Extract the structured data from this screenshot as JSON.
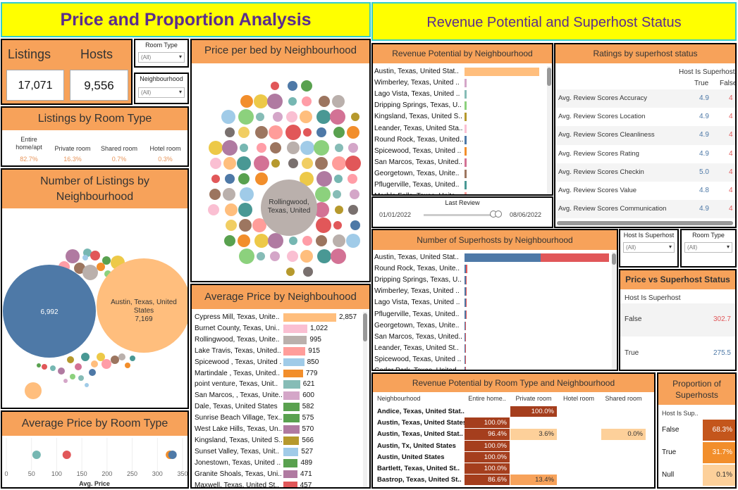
{
  "titles": {
    "left": "Price and Proportion Analysis",
    "right": "Revenue Potential and Superhost Status"
  },
  "kpi": {
    "listings_label": "Listings",
    "hosts_label": "Hosts",
    "listings": "17,071",
    "hosts": "9,556"
  },
  "filters": {
    "room_type": {
      "label": "Room Type",
      "value": "(All)"
    },
    "neighbourhood": {
      "label": "Neighbourhood",
      "value": "(All)"
    },
    "host_is_superhost": {
      "label": "Host Is Superhost",
      "value": "(All)"
    },
    "room_type_r": {
      "label": "Room Type",
      "value": "(All)"
    }
  },
  "room_type_section": {
    "title": "Listings by Room Type",
    "headers": [
      "Entire home/apt",
      "Private room",
      "Shared room",
      "Hotel room"
    ],
    "values": [
      "82.7%",
      "16.3%",
      "0.7%",
      "0.3%"
    ]
  },
  "listings_neigh": {
    "title": "Number of Listings by Neighbourhood",
    "big": [
      {
        "name": "",
        "label": "6,992",
        "value": 6992,
        "color": "#4e79a7"
      },
      {
        "name": "Austin, Texas, United States",
        "label": "7,169",
        "value": 7169,
        "color": "#ffbe7d"
      }
    ]
  },
  "price_bed": {
    "title": "Price per bed by Neighbourhood",
    "big_label": "Rollingwood, Texas, United"
  },
  "avg_price_room": {
    "title": "Average Price by Room Type",
    "xlabel": "Avg. Price",
    "ticks": [
      "0",
      "50",
      "100",
      "150",
      "200",
      "250",
      "300",
      "350"
    ],
    "points": [
      {
        "v": 60,
        "color": "#76b7b2"
      },
      {
        "v": 120,
        "color": "#e15759"
      },
      {
        "v": 325,
        "color": "#f28e2b"
      },
      {
        "v": 330,
        "color": "#4e79a7"
      }
    ]
  },
  "avg_price_neigh": {
    "title": "Average Price by Neighbouhood",
    "rows": [
      {
        "n": "Cypress Mill, Texas, Unite..",
        "v": "2,857",
        "num": 2857,
        "c": "#ffbe7d"
      },
      {
        "n": "Burnet County, Texas, Uni..",
        "v": "1,022",
        "num": 1022,
        "c": "#fabfd2"
      },
      {
        "n": "Rollingwood, Texas, Unite..",
        "v": "995",
        "num": 995,
        "c": "#bab0ac"
      },
      {
        "n": "Lake Travis, Texas, United..",
        "v": "915",
        "num": 915,
        "c": "#ff9d9a"
      },
      {
        "n": "Spicewood , Texas, United ..",
        "v": "850",
        "num": 850,
        "c": "#a0cbe8"
      },
      {
        "n": "Martindale , Texas, United..",
        "v": "779",
        "num": 779,
        "c": "#f28e2b"
      },
      {
        "n": "point venture, Texas, Unit..",
        "v": "621",
        "num": 621,
        "c": "#86bcb6"
      },
      {
        "n": "San Marcos, , Texas, Unite..",
        "v": "600",
        "num": 600,
        "c": "#d4a6c8"
      },
      {
        "n": "Dale, Texas, United States",
        "v": "582",
        "num": 582,
        "c": "#59a14f"
      },
      {
        "n": "Sunrise Beach Village, Tex..",
        "v": "575",
        "num": 575,
        "c": "#59a14f"
      },
      {
        "n": "West Lake Hills, Texas, Un..",
        "v": "570",
        "num": 570,
        "c": "#b07aa1"
      },
      {
        "n": "Kingsland, Texas, United S..",
        "v": "566",
        "num": 566,
        "c": "#b6992d"
      },
      {
        "n": "Sunset Valley, Texas, Unit..",
        "v": "527",
        "num": 527,
        "c": "#a0cbe8"
      },
      {
        "n": "Jonestown, Texas, United ..",
        "v": "489",
        "num": 489,
        "c": "#59a14f"
      },
      {
        "n": "Granite Shoals, Texas, Uni..",
        "v": "471",
        "num": 471,
        "c": "#b07aa1"
      },
      {
        "n": "Maxwell, Texas, United St..",
        "v": "457",
        "num": 457,
        "c": "#e15759"
      }
    ]
  },
  "revenue_neigh": {
    "title": "Revenue Potential by Neighbourhood",
    "rows": [
      {
        "n": "Austin, Texas, United Stat..",
        "num": 100,
        "c": "#ffbe7d"
      },
      {
        "n": "Wimberley, Texas, United ..",
        "num": 3,
        "c": "#d4a6c8"
      },
      {
        "n": "Lago Vista, Texas, United ..",
        "num": 2.5,
        "c": "#86bcb6"
      },
      {
        "n": "Dripping Springs, Texas, U..",
        "num": 2.5,
        "c": "#8cd17d"
      },
      {
        "n": "Kingsland, Texas, United S..",
        "num": 2,
        "c": "#b6992d"
      },
      {
        "n": "Leander, Texas, United Sta..",
        "num": 2,
        "c": "#fabfd2"
      },
      {
        "n": "Round Rock, Texas, United..",
        "num": 1.5,
        "c": "#4e79a7"
      },
      {
        "n": "Spicewood, Texas, United ..",
        "num": 1.5,
        "c": "#f28e2b"
      },
      {
        "n": "San Marcos, Texas, United..",
        "num": 1,
        "c": "#d37295"
      },
      {
        "n": "Georgetown, Texas, Unite..",
        "num": 1,
        "c": "#9d7660"
      },
      {
        "n": "Pflugerville, Texas, United..",
        "num": 1,
        "c": "#499894"
      },
      {
        "n": "Marble Falls, Texas, Unite..",
        "num": 1,
        "c": "#ff9d9a"
      }
    ]
  },
  "last_review": {
    "title": "Last Review",
    "start": "01/01/2022",
    "end": "08/06/2022"
  },
  "ratings": {
    "title": "Ratings by superhost status",
    "col_header": "Host Is Superhost",
    "cols": [
      "True",
      "False"
    ],
    "rows": [
      {
        "n": "Avg. Review Scores Accuracy",
        "t": "4.9",
        "f": "4"
      },
      {
        "n": "Avg. Review Scores Location",
        "t": "4.9",
        "f": "4"
      },
      {
        "n": "Avg. Review Scores Cleanliness",
        "t": "4.9",
        "f": "4"
      },
      {
        "n": "Avg. Review Scores Rating",
        "t": "4.9",
        "f": "4"
      },
      {
        "n": "Avg. Review Scores Checkin",
        "t": "5.0",
        "f": "4"
      },
      {
        "n": "Avg. Review Scores Value",
        "t": "4.8",
        "f": "4"
      },
      {
        "n": "Avg. Review Scores Communication",
        "t": "4.9",
        "f": "4"
      }
    ]
  },
  "superhosts_neigh": {
    "title": "Number of Superhosts by Neighbourhood",
    "rows": [
      {
        "n": "Austin, Texas, United Stat..",
        "a": 103,
        "b": 92
      },
      {
        "n": "Round Rock, Texas, Unite..",
        "a": 2,
        "b": 2
      },
      {
        "n": "Dripping Springs, Texas, U..",
        "a": 1.5,
        "b": 1.5
      },
      {
        "n": "Wimberley, Texas, United ..",
        "a": 1.5,
        "b": 1
      },
      {
        "n": "Lago Vista, Texas, United ..",
        "a": 1.5,
        "b": 1
      },
      {
        "n": "Pflugerville, Texas, United..",
        "a": 1.5,
        "b": 1
      },
      {
        "n": "Georgetown, Texas, Unite..",
        "a": 1,
        "b": 1
      },
      {
        "n": "San Marcos, Texas, United..",
        "a": 1,
        "b": 1
      },
      {
        "n": "Leander, Texas, United St..",
        "a": 1,
        "b": 1
      },
      {
        "n": "Spicewood, Texas, United ..",
        "a": 1,
        "b": 1
      },
      {
        "n": "Cedar Park, Texas, United ..",
        "a": 1,
        "b": 1
      }
    ]
  },
  "price_superhost": {
    "title": "Price vs Superhost Status",
    "header": "Host Is Superhost",
    "rows": [
      {
        "k": "False",
        "v": "302.7"
      },
      {
        "k": "True",
        "v": "275.5"
      }
    ]
  },
  "rev_room": {
    "title": "Revenue Potential by Room Type and Neighbourhood",
    "headers": [
      "Neighbourhood",
      "Entire home..",
      "Private room",
      "Hotel room",
      "Shared room"
    ],
    "rows": [
      {
        "n": "Andice, Texas, United Stat..",
        "cells": [
          "",
          "100.0%",
          "",
          ""
        ]
      },
      {
        "n": "Austin, Texas, United States",
        "cells": [
          "100.0%",
          "",
          "",
          ""
        ]
      },
      {
        "n": "Austin, Texas, United Stat..",
        "cells": [
          "96.4%",
          "3.6%",
          "",
          "0.0%"
        ]
      },
      {
        "n": "Austin, Tx, United States",
        "cells": [
          "100.0%",
          "",
          "",
          ""
        ]
      },
      {
        "n": "Austin, United States",
        "cells": [
          "100.0%",
          "",
          "",
          ""
        ]
      },
      {
        "n": "Bartlett, Texas, United St..",
        "cells": [
          "100.0%",
          "",
          "",
          ""
        ]
      },
      {
        "n": "Bastrop, Texas, United St..",
        "cells": [
          "86.6%",
          "13.4%",
          "",
          ""
        ]
      }
    ]
  },
  "proportion": {
    "title": "Proportion of Superhosts",
    "header": "Host Is Sup..",
    "rows": [
      {
        "k": "False",
        "v": "68.3%"
      },
      {
        "k": "True",
        "v": "31.7%"
      },
      {
        "k": "Null",
        "v": "0.1%"
      }
    ]
  },
  "colors": {
    "title_bg": "#ffff00",
    "title_text": "#5b2c8e",
    "accent": "#f7a25a",
    "blue": "#4e79a7",
    "red": "#e15759"
  }
}
